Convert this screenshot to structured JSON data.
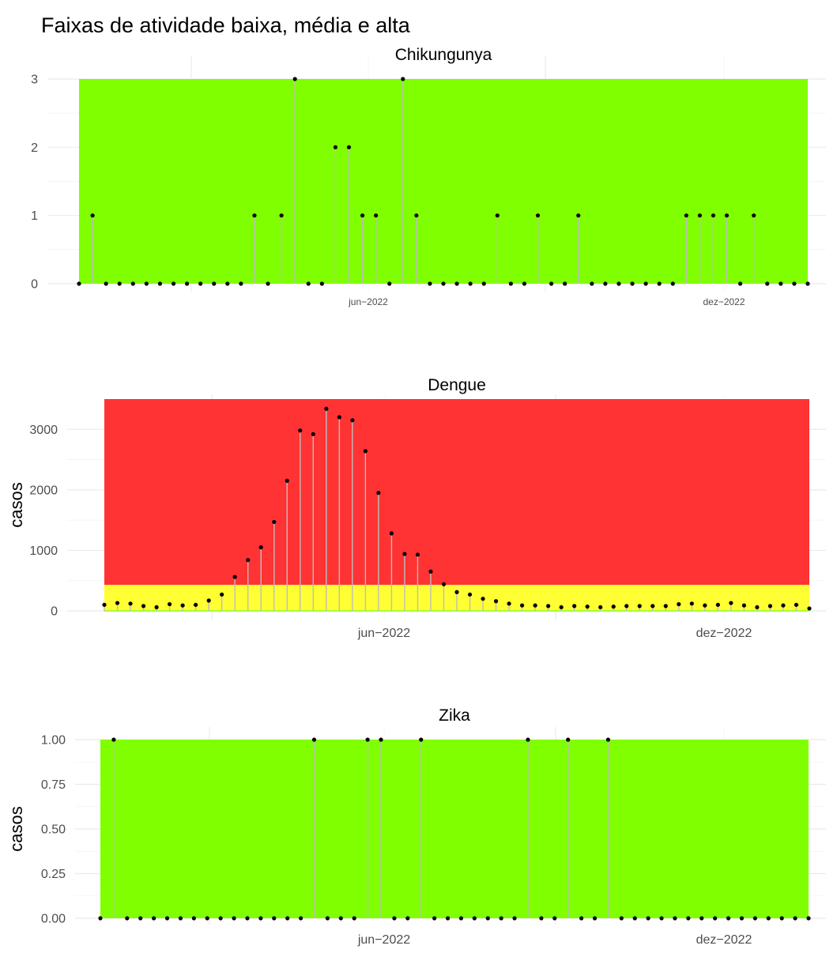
{
  "title": "Faixas de atividade baixa, média e alta",
  "colors": {
    "green": "#7fff00",
    "yellow": "#ffff33",
    "red": "#ff3333",
    "stem": "#bdbdbd",
    "point": "#000000",
    "grid": "#ebebeb"
  },
  "chart_data": [
    {
      "type": "scatter",
      "title": "Chikungunya",
      "ylabel": "",
      "ylim": [
        0,
        3
      ],
      "yticks": [
        "0",
        "1",
        "2",
        "3"
      ],
      "xticks": [
        "jun−2022",
        "dez−2022"
      ],
      "bands": [
        {
          "color": "green",
          "from": 0,
          "to": 3
        }
      ],
      "values": [
        0,
        1,
        0,
        0,
        0,
        0,
        0,
        0,
        0,
        0,
        0,
        0,
        0,
        1,
        0,
        1,
        3,
        0,
        0,
        2,
        2,
        1,
        1,
        0,
        3,
        1,
        0,
        0,
        0,
        0,
        0,
        1,
        0,
        0,
        1,
        0,
        0,
        1,
        0,
        0,
        0,
        0,
        0,
        0,
        0,
        1,
        1,
        1,
        1,
        0,
        1,
        0,
        0,
        0,
        0
      ]
    },
    {
      "type": "scatter",
      "title": "Dengue",
      "ylabel": "casos",
      "ylim": [
        0,
        3500
      ],
      "yticks": [
        "0",
        "1000",
        "2000",
        "3000"
      ],
      "xticks": [
        "jun−2022",
        "dez−2022"
      ],
      "bands": [
        {
          "color": "green",
          "from": 0,
          "to": 10
        },
        {
          "color": "yellow",
          "from": 10,
          "to": 430
        },
        {
          "color": "red",
          "from": 430,
          "to": 3500
        }
      ],
      "values": [
        100,
        130,
        120,
        80,
        60,
        110,
        90,
        100,
        170,
        270,
        560,
        840,
        1050,
        1470,
        2150,
        2980,
        2920,
        3340,
        3200,
        3150,
        2640,
        1950,
        1280,
        940,
        930,
        650,
        440,
        310,
        270,
        200,
        160,
        120,
        90,
        90,
        80,
        60,
        80,
        70,
        60,
        70,
        80,
        80,
        80,
        80,
        110,
        120,
        90,
        100,
        130,
        90,
        60,
        80,
        90,
        100,
        40
      ]
    },
    {
      "type": "scatter",
      "title": "Zika",
      "ylabel": "casos",
      "ylim": [
        0,
        1
      ],
      "yticks": [
        "0.00",
        "0.25",
        "0.50",
        "0.75",
        "1.00"
      ],
      "xticks": [
        "jun−2022",
        "dez−2022"
      ],
      "bands": [
        {
          "color": "green",
          "from": 0,
          "to": 1
        }
      ],
      "values": [
        0,
        1,
        0,
        0,
        0,
        0,
        0,
        0,
        0,
        0,
        0,
        0,
        0,
        0,
        0,
        0,
        1,
        0,
        0,
        0,
        1,
        1,
        0,
        0,
        1,
        0,
        0,
        0,
        0,
        0,
        0,
        0,
        1,
        0,
        0,
        1,
        0,
        0,
        1,
        0,
        0,
        0,
        0,
        0,
        0,
        0,
        0,
        0,
        0,
        0,
        0,
        0,
        0,
        0
      ]
    }
  ]
}
